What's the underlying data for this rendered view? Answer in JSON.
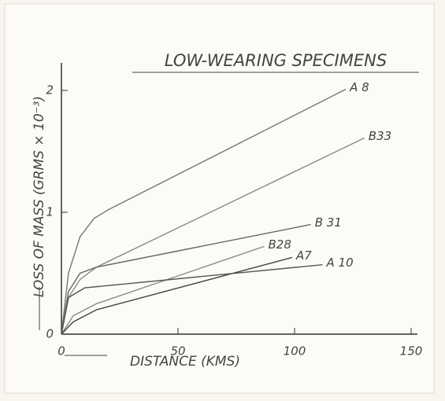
{
  "chart_data": {
    "type": "line",
    "title": "LOW-WEARING SPECIMENS",
    "x_label": "DISTANCE (KMS)",
    "y_label": "LOSS OF MASS (GRMS × 10⁻³)",
    "xlim": [
      0,
      150
    ],
    "ylim": [
      0,
      2.2
    ],
    "xticks": [
      0,
      50,
      100,
      150
    ],
    "yticks": [
      0,
      1,
      2
    ],
    "series": [
      {
        "name": "A 8",
        "color": "#777",
        "x": [
          0,
          3,
          8,
          14,
          20,
          122
        ],
        "values": [
          0,
          0.5,
          0.8,
          0.95,
          1.02,
          2.01
        ]
      },
      {
        "name": "B33",
        "color": "#888",
        "x": [
          0,
          3,
          8,
          15,
          130
        ],
        "values": [
          0,
          0.3,
          0.45,
          0.55,
          1.61
        ]
      },
      {
        "name": "B 31",
        "color": "#666",
        "x": [
          0,
          3,
          8,
          15,
          107
        ],
        "values": [
          0,
          0.35,
          0.5,
          0.55,
          0.9
        ]
      },
      {
        "name": "B28",
        "color": "#888",
        "x": [
          0,
          5,
          15,
          87
        ],
        "values": [
          0,
          0.15,
          0.25,
          0.72
        ]
      },
      {
        "name": "A7",
        "color": "#444",
        "x": [
          0,
          5,
          15,
          99
        ],
        "values": [
          0,
          0.1,
          0.2,
          0.63
        ]
      },
      {
        "name": "A 10",
        "color": "#555",
        "x": [
          0,
          3,
          10,
          112
        ],
        "values": [
          0,
          0.3,
          0.38,
          0.57
        ]
      }
    ]
  }
}
